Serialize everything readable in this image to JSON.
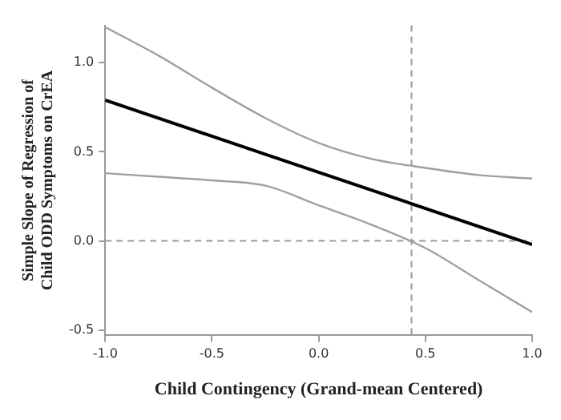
{
  "chart_data": {
    "type": "line",
    "xlabel": "Child Contingency (Grand-mean Centered)",
    "ylabel": "Simple Slope of Regression of Child ODD Symptoms on CrEA",
    "series": [
      {
        "type": "line",
        "color": "#000000",
        "x": [
          -1,
          1
        ],
        "values": [
          0.79,
          -0.02
        ]
      },
      {
        "type": "line",
        "color": "#a0a0a0",
        "x": [
          -1,
          -0.75,
          -0.5,
          -0.25,
          0,
          0.25,
          0.5,
          0.75,
          1
        ],
        "values": [
          1.2,
          1.04,
          0.86,
          0.69,
          0.55,
          0.46,
          0.41,
          0.37,
          0.35
        ]
      },
      {
        "type": "line",
        "color": "#a0a0a0",
        "x": [
          -1,
          -0.75,
          -0.5,
          -0.25,
          0,
          0.25,
          0.5,
          0.75,
          1
        ],
        "values": [
          0.38,
          0.36,
          0.34,
          0.31,
          0.2,
          0.09,
          -0.04,
          -0.22,
          -0.4
        ]
      }
    ],
    "xlim": [
      -1,
      1
    ],
    "ylim": [
      -0.53,
      1.21
    ],
    "xticks": [
      {
        "value": -1,
        "label": "-1.0"
      },
      -0.5,
      {
        "value": 0,
        "label": "0.0"
      },
      0.5,
      {
        "value": 1,
        "label": "1.0"
      }
    ],
    "yticks": [
      -0.5,
      {
        "value": 0,
        "label": "0.0"
      },
      0.5,
      {
        "value": 1,
        "label": "1.0"
      }
    ],
    "ref_lines": [
      {
        "axis": "x",
        "value": 0.435,
        "color": "#999999",
        "line_style": "dashed"
      },
      {
        "axis": "y",
        "value": 0,
        "color": "#999999",
        "line_style": "dashed"
      }
    ],
    "grid": false,
    "legend": false,
    "marker": "none",
    "line_style": "solid"
  }
}
